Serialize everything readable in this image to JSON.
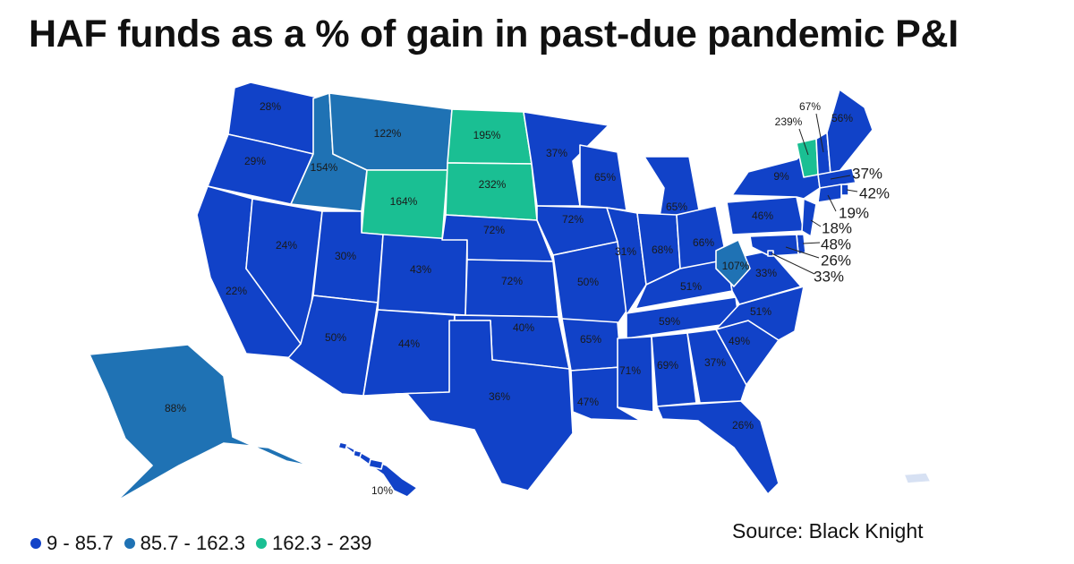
{
  "title": "HAF funds as a % of gain in past-due pandemic P&I",
  "source": "Source: Black Knight",
  "colors": {
    "low": "#1142c8",
    "mid": "#1f72b4",
    "high": "#1abf93",
    "pr": "#d7e1f3"
  },
  "legend": [
    {
      "label": "9 - 85.7",
      "color": "#1142c8"
    },
    {
      "label": "85.7 - 162.3",
      "color": "#1f72b4"
    },
    {
      "label": "162.3 - 239",
      "color": "#1abf93"
    }
  ],
  "states": [
    {
      "id": "WA",
      "value": 28,
      "label": "28%"
    },
    {
      "id": "OR",
      "value": 29,
      "label": "29%"
    },
    {
      "id": "CA",
      "value": 22,
      "label": "22%"
    },
    {
      "id": "NV",
      "value": 24,
      "label": "24%"
    },
    {
      "id": "ID",
      "value": 154,
      "label": "154%"
    },
    {
      "id": "MT",
      "value": 122,
      "label": "122%"
    },
    {
      "id": "WY",
      "value": 164,
      "label": "164%"
    },
    {
      "id": "UT",
      "value": 30,
      "label": "30%"
    },
    {
      "id": "AZ",
      "value": 50,
      "label": "50%"
    },
    {
      "id": "CO",
      "value": 43,
      "label": "43%"
    },
    {
      "id": "NM",
      "value": 44,
      "label": "44%"
    },
    {
      "id": "ND",
      "value": 195,
      "label": "195%"
    },
    {
      "id": "SD",
      "value": 232,
      "label": "232%"
    },
    {
      "id": "NE",
      "value": 72,
      "label": "72%"
    },
    {
      "id": "KS",
      "value": 72,
      "label": "72%"
    },
    {
      "id": "OK",
      "value": 40,
      "label": "40%"
    },
    {
      "id": "TX",
      "value": 36,
      "label": "36%"
    },
    {
      "id": "MN",
      "value": 37,
      "label": "37%"
    },
    {
      "id": "IA",
      "value": 72,
      "label": "72%"
    },
    {
      "id": "MO",
      "value": 50,
      "label": "50%"
    },
    {
      "id": "AR",
      "value": 65,
      "label": "65%"
    },
    {
      "id": "LA",
      "value": 47,
      "label": "47%"
    },
    {
      "id": "WI",
      "value": 65,
      "label": "65%"
    },
    {
      "id": "IL",
      "value": 31,
      "label": "31%"
    },
    {
      "id": "MI",
      "value": 65,
      "label": "65%"
    },
    {
      "id": "IN",
      "value": 68,
      "label": "68%"
    },
    {
      "id": "OH",
      "value": 66,
      "label": "66%"
    },
    {
      "id": "KY",
      "value": 51,
      "label": "51%"
    },
    {
      "id": "TN",
      "value": 59,
      "label": "59%"
    },
    {
      "id": "MS",
      "value": 71,
      "label": "71%"
    },
    {
      "id": "AL",
      "value": 69,
      "label": "69%"
    },
    {
      "id": "GA",
      "value": 37,
      "label": "37%"
    },
    {
      "id": "FL",
      "value": 26,
      "label": "26%"
    },
    {
      "id": "SC",
      "value": 49,
      "label": "49%"
    },
    {
      "id": "NC",
      "value": 51,
      "label": "51%"
    },
    {
      "id": "VA",
      "value": 33,
      "label": "33%"
    },
    {
      "id": "WV",
      "value": 107,
      "label": "107%"
    },
    {
      "id": "PA",
      "value": 46,
      "label": "46%"
    },
    {
      "id": "NY",
      "value": 9,
      "label": "9%"
    },
    {
      "id": "VT",
      "value": 239,
      "label": "239%"
    },
    {
      "id": "NH",
      "value": 67,
      "label": "67%"
    },
    {
      "id": "ME",
      "value": 56,
      "label": "56%"
    },
    {
      "id": "MA",
      "value": 37,
      "label": "37%"
    },
    {
      "id": "RI",
      "value": 42,
      "label": "42%"
    },
    {
      "id": "CT",
      "value": 19,
      "label": "19%"
    },
    {
      "id": "NJ",
      "value": 18,
      "label": "18%"
    },
    {
      "id": "DE",
      "value": 48,
      "label": "48%"
    },
    {
      "id": "MD",
      "value": 26,
      "label": "26%"
    },
    {
      "id": "DC",
      "value": 33,
      "label": "33%"
    },
    {
      "id": "AK",
      "value": 88,
      "label": "88%"
    },
    {
      "id": "HI",
      "value": 10,
      "label": "10%"
    }
  ]
}
